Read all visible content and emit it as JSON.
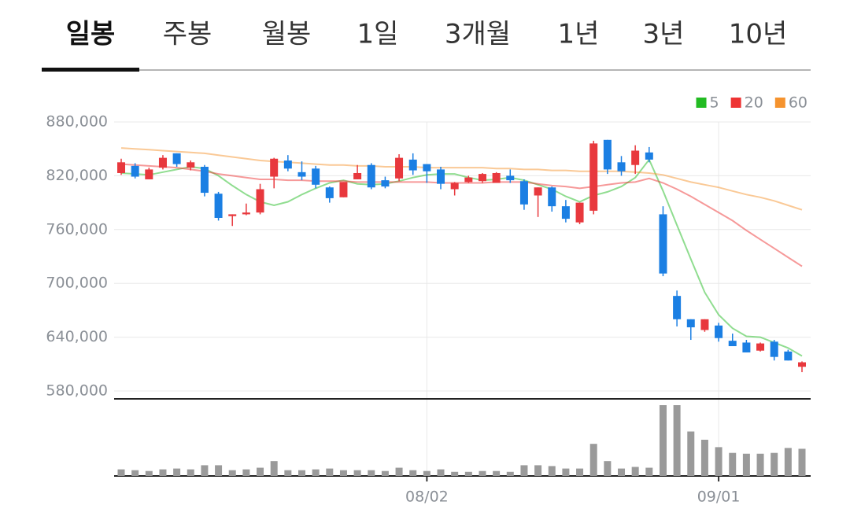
{
  "tabs": [
    {
      "label": "일봉",
      "selected": true
    },
    {
      "label": "주봉",
      "selected": false
    },
    {
      "label": "월봉",
      "selected": false
    },
    {
      "label": "1일",
      "selected": false
    },
    {
      "label": "3개월",
      "selected": false
    },
    {
      "label": "1년",
      "selected": false
    },
    {
      "label": "3년",
      "selected": false
    },
    {
      "label": "10년",
      "selected": false
    }
  ],
  "chart_data": {
    "type": "candlestick",
    "categories": [
      null,
      null,
      null,
      null,
      null,
      null,
      null,
      null,
      null,
      null,
      null,
      null,
      null,
      null,
      null,
      null,
      null,
      null,
      null,
      null,
      null,
      null,
      "08/02",
      null,
      null,
      null,
      null,
      null,
      null,
      null,
      null,
      null,
      null,
      null,
      null,
      null,
      null,
      null,
      null,
      null,
      null,
      null,
      null,
      "09/01",
      null,
      null,
      null,
      null,
      null,
      null
    ],
    "open": [
      823000,
      831000,
      816000,
      829000,
      845000,
      829000,
      830000,
      800000,
      775000,
      777000,
      779000,
      819000,
      837000,
      824000,
      828000,
      807000,
      796000,
      816000,
      832000,
      815000,
      817000,
      838000,
      833000,
      827000,
      805000,
      813000,
      814000,
      812000,
      820000,
      814000,
      798000,
      807000,
      786000,
      768000,
      781000,
      860000,
      835000,
      832000,
      846000,
      777000,
      686000,
      660000,
      648000,
      653000,
      636000,
      634000,
      625000,
      635000,
      624000,
      607000
    ],
    "high": [
      839000,
      834000,
      829000,
      843000,
      845000,
      837000,
      832000,
      802000,
      777000,
      789000,
      811000,
      840000,
      843000,
      836000,
      831000,
      808000,
      813000,
      832000,
      834000,
      819000,
      844000,
      845000,
      833000,
      830000,
      813000,
      820000,
      823000,
      824000,
      827000,
      816000,
      807000,
      808000,
      793000,
      790000,
      859000,
      860000,
      842000,
      854000,
      852000,
      786000,
      692000,
      660000,
      660000,
      656000,
      644000,
      637000,
      634000,
      637000,
      626000,
      613000
    ],
    "low": [
      821000,
      817000,
      816000,
      827000,
      830000,
      826000,
      797000,
      770000,
      764000,
      776000,
      777000,
      806000,
      825000,
      815000,
      806000,
      790000,
      796000,
      816000,
      805000,
      806000,
      814000,
      821000,
      812000,
      805000,
      798000,
      812000,
      812000,
      812000,
      812000,
      782000,
      774000,
      780000,
      768000,
      766000,
      777000,
      822000,
      820000,
      822000,
      835000,
      708000,
      652000,
      637000,
      646000,
      635000,
      630000,
      623000,
      624000,
      614000,
      614000,
      601000
    ],
    "close": [
      835000,
      819000,
      827000,
      840000,
      833000,
      835000,
      801000,
      773000,
      777000,
      779000,
      805000,
      839000,
      828000,
      819000,
      810000,
      795000,
      813000,
      823000,
      807000,
      808000,
      840000,
      826000,
      825000,
      811000,
      812000,
      818000,
      822000,
      823000,
      815000,
      788000,
      807000,
      786000,
      772000,
      790000,
      856000,
      827000,
      825000,
      848000,
      838000,
      711000,
      660000,
      651000,
      660000,
      639000,
      630000,
      623000,
      633000,
      618000,
      614000,
      612000
    ],
    "up_color": "#e8383d",
    "down_color": "#1b7fe3",
    "ylim": [
      580000,
      880000
    ],
    "yticks": [
      {
        "value": 580000,
        "label": "580,000"
      },
      {
        "value": 640000,
        "label": "640,000"
      },
      {
        "value": 700000,
        "label": "700,000"
      },
      {
        "value": 760000,
        "label": "760,000"
      },
      {
        "value": 820000,
        "label": "820,000"
      },
      {
        "value": 880000,
        "label": "880,000"
      }
    ],
    "grid": true,
    "legend": "top-right",
    "series": [
      {
        "name": "5",
        "color": "#22bb22",
        "values": [
          823000,
          822000,
          821000,
          824000,
          827000,
          830000,
          828000,
          820000,
          809000,
          799000,
          791000,
          787000,
          791000,
          799000,
          806000,
          812000,
          815000,
          811000,
          810000,
          811000,
          814000,
          818000,
          821000,
          822000,
          822000,
          818000,
          815000,
          816000,
          818000,
          815000,
          810000,
          805000,
          797000,
          791000,
          798000,
          802000,
          808000,
          818000,
          838000,
          803000,
          765000,
          727000,
          690000,
          665000,
          650000,
          641000,
          640000,
          634000,
          628000,
          619000
        ]
      },
      {
        "name": "20",
        "color": "#ee3333",
        "values": [
          833000,
          832000,
          831000,
          830000,
          829000,
          827000,
          825000,
          822000,
          820000,
          818000,
          816000,
          816000,
          815000,
          815000,
          814000,
          814000,
          814000,
          813000,
          813000,
          813000,
          813000,
          813000,
          813000,
          812000,
          812000,
          812000,
          812000,
          813000,
          813000,
          813000,
          811000,
          809000,
          808000,
          806000,
          808000,
          810000,
          812000,
          813000,
          817000,
          812000,
          805000,
          797000,
          788000,
          779000,
          770000,
          759000,
          749000,
          739000,
          729000,
          719000
        ]
      },
      {
        "name": "60",
        "color": "#f5932e",
        "values": [
          851000,
          850000,
          849000,
          848000,
          847000,
          846000,
          845000,
          843000,
          841000,
          839000,
          837000,
          836000,
          835000,
          834000,
          833000,
          832000,
          832000,
          831000,
          831000,
          830000,
          830000,
          830000,
          829000,
          829000,
          829000,
          829000,
          829000,
          828000,
          828000,
          827000,
          827000,
          826000,
          826000,
          825000,
          825000,
          825000,
          825000,
          824000,
          823000,
          821000,
          817000,
          813000,
          810000,
          807000,
          803000,
          799000,
          796000,
          792000,
          787000,
          782000
        ]
      }
    ],
    "volume": {
      "color": "#9a9a9a",
      "values": [
        8,
        7,
        6,
        8,
        9,
        8,
        13,
        13,
        7,
        8,
        10,
        18,
        7,
        7,
        8,
        9,
        7,
        7,
        7,
        6,
        10,
        7,
        6,
        8,
        5,
        5,
        6,
        6,
        5,
        13,
        13,
        12,
        9,
        9,
        39,
        18,
        9,
        11,
        10,
        86,
        86,
        54,
        44,
        35,
        28,
        27,
        27,
        28,
        34,
        33
      ]
    }
  }
}
